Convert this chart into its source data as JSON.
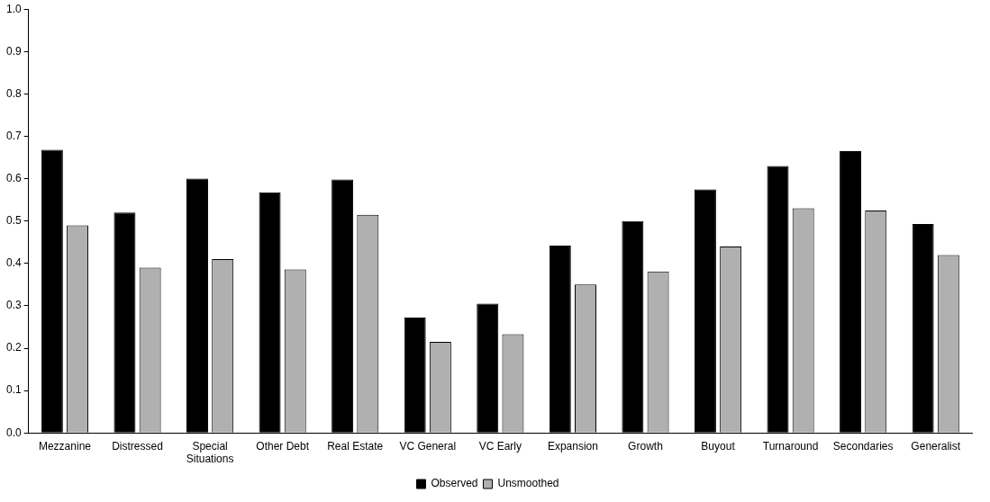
{
  "chart_data": {
    "type": "bar",
    "categories": [
      "Mezzanine",
      "Distressed",
      "Special Situations",
      "Other Debt",
      "Real Estate",
      "VC General",
      "VC Early",
      "Expansion",
      "Growth",
      "Buyout",
      "Turnaround",
      "Secondaries",
      "Generalist"
    ],
    "series": [
      {
        "name": "Observed",
        "color": "#000000",
        "values": [
          0.668,
          0.52,
          0.6,
          0.568,
          0.598,
          0.272,
          0.305,
          0.442,
          0.5,
          0.575,
          0.63,
          0.665,
          0.493
        ]
      },
      {
        "name": "Unsmoothed",
        "color": "#b0b0b0",
        "values": [
          0.49,
          0.39,
          0.41,
          0.386,
          0.515,
          0.215,
          0.233,
          0.35,
          0.381,
          0.44,
          0.53,
          0.525,
          0.42
        ]
      }
    ],
    "ylim": [
      0,
      1
    ],
    "yticks": [
      {
        "value": 0,
        "label": "0.0"
      },
      {
        "value": 0.1,
        "label": "0.1"
      },
      {
        "value": 0.2,
        "label": "0.2"
      },
      {
        "value": 0.3,
        "label": "0.3"
      },
      {
        "value": 0.4,
        "label": "0.4"
      },
      {
        "value": 0.5,
        "label": "0.5"
      },
      {
        "value": 0.6,
        "label": "0.6"
      },
      {
        "value": 0.7,
        "label": "0.7"
      },
      {
        "value": 0.8,
        "label": "0.8"
      },
      {
        "value": 0.9,
        "label": "0.9"
      },
      {
        "value": 1,
        "label": "1.0"
      }
    ],
    "grid": false,
    "legend": "bottom"
  }
}
